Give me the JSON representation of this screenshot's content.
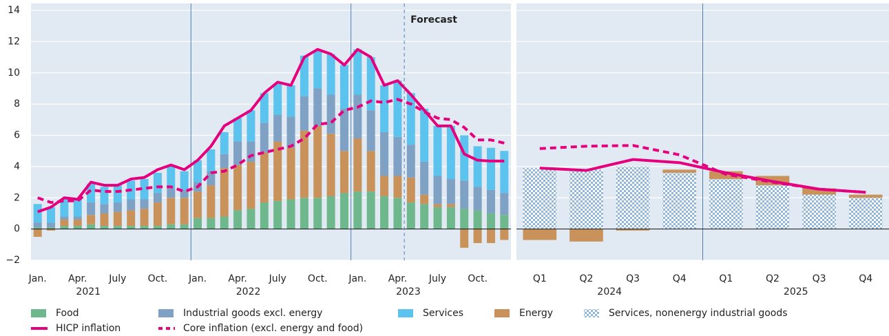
{
  "chart_data": [
    {
      "type": "bar",
      "stacked": true,
      "categories": [
        "Jan.",
        null,
        null,
        "Apr.",
        null,
        null,
        "July",
        null,
        null,
        "Oct.",
        null,
        null,
        "Jan.",
        null,
        null,
        "Apr.",
        null,
        null,
        "July",
        null,
        null,
        "Oct.",
        null,
        null,
        "Jan.",
        null,
        null,
        "Apr.",
        null,
        null,
        "July",
        null,
        null,
        "Oct.",
        null,
        null
      ],
      "groups": [
        "2021",
        "2022",
        "2023"
      ],
      "annotation": {
        "text": "Forecast"
      },
      "ylim": [
        -2,
        14
      ],
      "yticks": [
        {
          "value": -2,
          "label": "−2"
        },
        0,
        2,
        4,
        6,
        8,
        10,
        12,
        14
      ],
      "grid": true,
      "series": [
        {
          "name": "Food",
          "color": "#6fb78c",
          "values": [
            0.1,
            0.1,
            0.2,
            0.2,
            0.3,
            0.2,
            0.2,
            0.2,
            0.2,
            0.2,
            0.3,
            0.3,
            0.7,
            0.7,
            0.8,
            1.2,
            1.3,
            1.7,
            1.8,
            1.9,
            2.0,
            2.0,
            2.1,
            2.3,
            2.4,
            2.4,
            2.1,
            2.0,
            1.7,
            1.6,
            1.4,
            1.4,
            1.3,
            1.2,
            1.0,
            0.9
          ]
        },
        {
          "name": "Energy",
          "color": "#c9925a",
          "values": [
            -0.5,
            -0.1,
            0.4,
            0.4,
            0.6,
            0.8,
            0.9,
            1.0,
            1.1,
            1.5,
            1.7,
            1.7,
            1.7,
            2.1,
            3.1,
            2.9,
            3.0,
            3.2,
            3.8,
            3.3,
            4.3,
            4.6,
            4.0,
            2.7,
            3.4,
            2.6,
            1.3,
            1.4,
            1.6,
            0.6,
            0.2,
            0.2,
            -1.2,
            -0.9,
            -0.9,
            -0.7
          ]
        },
        {
          "name": "Industrial goods excl. energy",
          "color": "#7fa1c3",
          "values": [
            0.3,
            0.3,
            0.2,
            0.2,
            0.8,
            0.6,
            0.6,
            0.7,
            0.6,
            0.6,
            0.6,
            0.5,
            0.6,
            0.9,
            0.9,
            1.5,
            1.3,
            1.9,
            1.7,
            2.0,
            2.2,
            2.4,
            2.5,
            2.7,
            2.8,
            2.6,
            2.8,
            2.5,
            2.1,
            2.1,
            1.8,
            1.6,
            1.8,
            1.5,
            1.5,
            1.4
          ]
        },
        {
          "name": "Services",
          "color": "#5cc3ee",
          "values": [
            1.2,
            1.0,
            1.1,
            1.1,
            1.2,
            1.1,
            1.1,
            1.2,
            1.3,
            1.3,
            1.5,
            1.2,
            1.4,
            1.4,
            1.4,
            1.5,
            2.0,
            1.9,
            2.0,
            2.0,
            2.6,
            2.4,
            2.6,
            2.8,
            2.9,
            3.4,
            3.0,
            3.6,
            3.3,
            3.4,
            3.2,
            3.4,
            2.9,
            2.6,
            2.7,
            2.7
          ]
        },
        {
          "name": "HICP inflation",
          "type": "line",
          "color": "#e5007d",
          "values": [
            1.1,
            1.4,
            2.0,
            1.9,
            3.0,
            2.8,
            2.8,
            3.2,
            3.3,
            3.8,
            4.1,
            3.8,
            4.4,
            5.3,
            6.6,
            7.1,
            7.6,
            8.7,
            9.4,
            9.2,
            11.0,
            11.5,
            11.2,
            10.5,
            11.5,
            11.0,
            9.2,
            9.5,
            8.6,
            7.6,
            6.6,
            6.6,
            4.8,
            4.4,
            4.35,
            4.35
          ]
        },
        {
          "name": "Core inflation (excl. energy and food)",
          "type": "line",
          "dashed": true,
          "color": "#e5007d",
          "values": [
            2.0,
            1.7,
            1.8,
            1.8,
            2.5,
            2.4,
            2.4,
            2.5,
            2.6,
            2.7,
            2.7,
            2.4,
            2.7,
            3.6,
            3.7,
            4.1,
            4.7,
            4.9,
            5.1,
            5.3,
            5.8,
            6.7,
            6.8,
            7.6,
            7.8,
            8.2,
            8.1,
            8.3,
            8.0,
            7.5,
            7.1,
            7.0,
            6.5,
            5.7,
            5.7,
            5.5
          ]
        }
      ]
    },
    {
      "type": "bar",
      "stacked": true,
      "categories": [
        "Q1",
        "Q2",
        "Q3",
        "Q4",
        "Q1",
        "Q2",
        "Q3",
        "Q4"
      ],
      "groups": [
        "2024",
        "2025"
      ],
      "ylim": [
        -2,
        14
      ],
      "yticks": [
        -2,
        0,
        2,
        4,
        6,
        8,
        10,
        12,
        14
      ],
      "grid": true,
      "series": [
        {
          "name": "Services, nonenergy industrial goods",
          "color": "#8fb6dc",
          "pattern": "checker",
          "values": [
            3.9,
            3.8,
            4.0,
            3.6,
            3.2,
            2.8,
            2.2,
            2.0
          ]
        },
        {
          "color": "#c9925a",
          "values": [
            -0.7,
            -0.8,
            -0.1,
            0.2,
            0.5,
            0.6,
            0.4,
            0.2
          ]
        },
        {
          "type": "line",
          "color": "#e5007d",
          "values": [
            3.9,
            3.75,
            4.45,
            4.25,
            3.6,
            3.05,
            2.55,
            2.35
          ]
        },
        {
          "type": "line",
          "dashed": true,
          "color": "#e5007d",
          "values": [
            5.15,
            5.3,
            5.35,
            4.75,
            3.5,
            3.0,
            2.55,
            2.35
          ]
        }
      ]
    }
  ]
}
